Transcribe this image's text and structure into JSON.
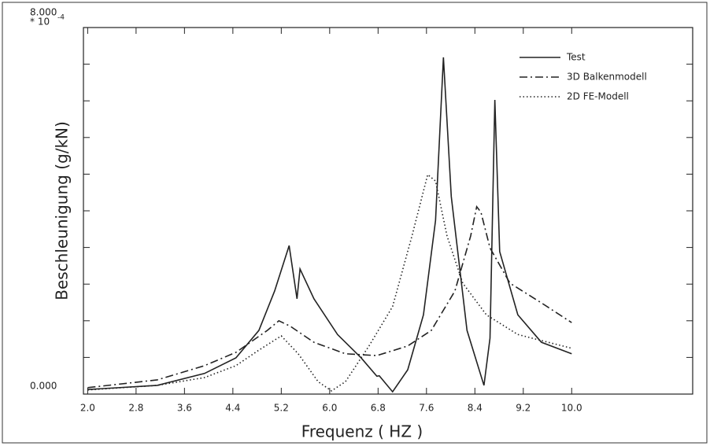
{
  "chart_data": {
    "type": "line",
    "y_label": "Beschleunigung (g/kN)",
    "x_label": "Frequenz ( HZ )",
    "y_scale_label": "* 10",
    "y_scale_exponent": "-4",
    "xlim": [
      1.93,
      12
    ],
    "ylim": [
      0,
      8
    ],
    "xticks": [
      {
        "value": 2,
        "label": "2.0"
      },
      2.8,
      3.6,
      4.4,
      5.2,
      {
        "value": 6,
        "label": "6.0"
      },
      6.8,
      7.6,
      8.4,
      9.2,
      {
        "value": 10,
        "label": "10.0"
      }
    ],
    "yticks": [
      {
        "value": 0,
        "label": "0.000"
      },
      {
        "value": 8,
        "label": "8.000"
      }
    ],
    "y_minor_ticks": [
      0.8,
      1.6,
      2.4,
      3.2,
      4.0,
      4.8,
      5.6,
      6.4,
      7.2
    ],
    "legend": "upper right",
    "series": [
      {
        "name": "Test",
        "color": "#222222",
        "dash": "solid",
        "x": [
          2.0,
          3.15,
          3.93,
          4.45,
          4.83,
          5.09,
          5.33,
          5.46,
          5.51,
          5.74,
          6.13,
          6.52,
          6.78,
          6.82,
          7.04,
          7.29,
          7.55,
          7.75,
          7.88,
          8.01,
          8.27,
          8.55,
          8.65,
          8.73,
          8.81,
          9.11,
          9.5,
          10.0
        ],
        "values": [
          0.1,
          0.19,
          0.45,
          0.79,
          1.39,
          2.25,
          3.24,
          2.08,
          2.73,
          2.08,
          1.3,
          0.79,
          0.39,
          0.4,
          0.05,
          0.53,
          1.73,
          3.79,
          7.35,
          4.31,
          1.39,
          0.19,
          1.22,
          6.42,
          3.11,
          1.73,
          1.13,
          0.88
        ]
      },
      {
        "name": "3D Balkenmodell",
        "color": "#222222",
        "dash": "dashdot",
        "x": [
          2.0,
          3.15,
          3.93,
          4.45,
          4.97,
          5.16,
          5.35,
          5.74,
          6.26,
          6.78,
          7.29,
          7.68,
          8.07,
          8.33,
          8.43,
          8.5,
          8.65,
          8.98,
          9.5,
          10.0
        ],
        "values": [
          0.14,
          0.31,
          0.62,
          0.91,
          1.39,
          1.6,
          1.48,
          1.13,
          0.88,
          0.84,
          1.05,
          1.39,
          2.25,
          3.45,
          4.09,
          3.97,
          3.19,
          2.42,
          1.99,
          1.56
        ]
      },
      {
        "name": "2D FE-Modell",
        "color": "#222222",
        "dash": "dotted",
        "x": [
          2.0,
          3.15,
          3.93,
          4.45,
          4.83,
          5.2,
          5.48,
          5.81,
          6.03,
          6.26,
          6.65,
          7.04,
          7.36,
          7.62,
          7.75,
          7.94,
          8.2,
          8.59,
          9.11,
          10.0
        ],
        "values": [
          0.09,
          0.19,
          0.36,
          0.62,
          0.96,
          1.27,
          0.88,
          0.27,
          0.07,
          0.27,
          1.05,
          1.91,
          3.45,
          4.79,
          4.65,
          3.45,
          2.42,
          1.73,
          1.3,
          1.0
        ]
      }
    ]
  }
}
